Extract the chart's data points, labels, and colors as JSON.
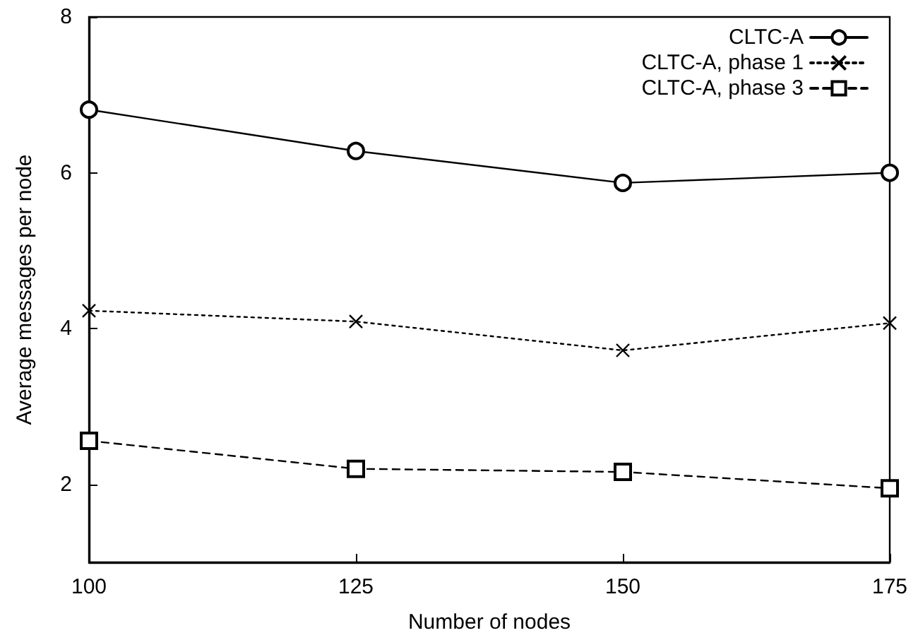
{
  "chart_data": {
    "type": "line",
    "xlabel": "Number of nodes",
    "ylabel": "Average messages per node",
    "x": [
      100,
      125,
      150,
      175
    ],
    "series": [
      {
        "name": "CLTC-A",
        "color": "#000000",
        "marker": "circle",
        "line_style": "solid",
        "values": [
          6.81,
          6.28,
          5.87,
          6.0
        ]
      },
      {
        "name": "CLTC-A, phase 1",
        "color": "#000000",
        "marker": "cross",
        "line_style": "dotted",
        "values": [
          4.23,
          4.09,
          3.72,
          4.07
        ]
      },
      {
        "name": "CLTC-A, phase 3",
        "color": "#000000",
        "marker": "square",
        "line_style": "dashed",
        "values": [
          2.56,
          2.2,
          2.16,
          1.95
        ]
      }
    ],
    "xlim": [
      100,
      175
    ],
    "xticks": [
      100,
      125,
      150,
      175
    ],
    "ylim": [
      1,
      8
    ],
    "yticks": [
      2,
      4,
      6,
      8
    ],
    "grid": false,
    "legend": "top right"
  }
}
